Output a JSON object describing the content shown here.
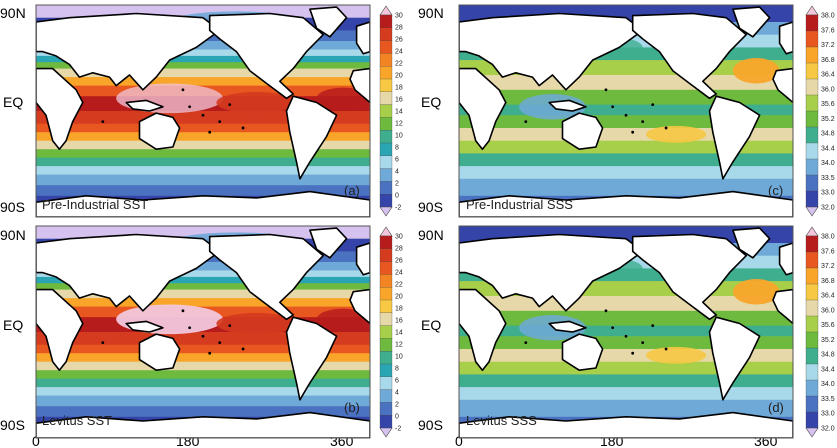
{
  "axes": {
    "lat_labels": [
      "90N",
      "EQ",
      "90S"
    ],
    "lon_labels": [
      "0",
      "180",
      "360"
    ]
  },
  "panels": [
    {
      "id": "a",
      "title": "Pre-Industrial SST",
      "letter": "(a)",
      "field": "sst",
      "variant": 0
    },
    {
      "id": "b",
      "title": "Levitus SST",
      "letter": "(b)",
      "field": "sst",
      "variant": 1
    },
    {
      "id": "c",
      "title": "Pre-Industrial SSS",
      "letter": "(c)",
      "field": "sss",
      "variant": 0
    },
    {
      "id": "d",
      "title": "Levitus SSS",
      "letter": "(d)",
      "field": "sss",
      "variant": 1
    }
  ],
  "colorbars": {
    "sst": {
      "labels": [
        "30",
        "28",
        "26",
        "24",
        "22",
        "20",
        "18",
        "16",
        "14",
        "12",
        "10",
        "8",
        "6",
        "4",
        "2",
        "0",
        "-2"
      ],
      "colors": [
        "#f2c7dc",
        "#b71c1c",
        "#d43b1f",
        "#e8571f",
        "#f28424",
        "#f8a52a",
        "#f6c843",
        "#e6d8a8",
        "#a8cf4a",
        "#6dba3f",
        "#3fae8e",
        "#2aa5b4",
        "#a8d9ea",
        "#6fa9d8",
        "#4a72c0",
        "#3544a8",
        "#d6c2ee"
      ]
    },
    "sss": {
      "labels": [
        "38.0",
        "37.6",
        "37.2",
        "36.8",
        "36.4",
        "36.0",
        "35.6",
        "35.2",
        "34.8",
        "34.4",
        "34.0",
        "33.5",
        "33.0",
        "32.0"
      ],
      "colors": [
        "#f2c7dc",
        "#b71c1c",
        "#e8571f",
        "#f8a52a",
        "#f6c843",
        "#e6d8a8",
        "#a8cf4a",
        "#6dba3f",
        "#3fae8e",
        "#a8d9ea",
        "#6fa9d8",
        "#4a72c0",
        "#3544a8",
        "#d6c2ee"
      ]
    }
  }
}
